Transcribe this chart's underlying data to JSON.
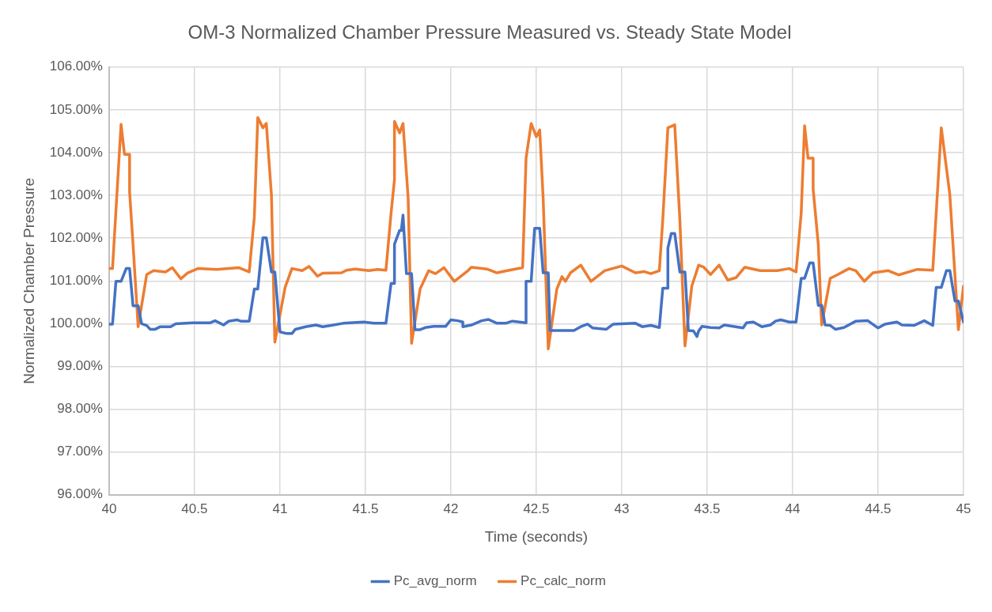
{
  "chart_data": {
    "type": "line",
    "title": "OM-3 Normalized Chamber Pressure Measured vs. Steady State Model",
    "xlabel": "Time (seconds)",
    "ylabel": "Normalized Chamber Pressure",
    "xlim": [
      40,
      45
    ],
    "xticks": [
      40,
      40.5,
      41,
      41.5,
      42,
      42.5,
      43,
      43.5,
      44,
      44.5,
      45
    ],
    "ylim": [
      96,
      106
    ],
    "yticks": [
      {
        "value": 96,
        "label": "96.00%"
      },
      {
        "value": 97,
        "label": "97.00%"
      },
      {
        "value": 98,
        "label": "98.00%"
      },
      {
        "value": 99,
        "label": "99.00%"
      },
      {
        "value": 100,
        "label": "100.00%"
      },
      {
        "value": 101,
        "label": "101.00%"
      },
      {
        "value": 102,
        "label": "102.00%"
      },
      {
        "value": 103,
        "label": "103.00%"
      },
      {
        "value": 104,
        "label": "104.00%"
      },
      {
        "value": 105,
        "label": "105.00%"
      },
      {
        "value": 106,
        "label": "106.00%"
      }
    ],
    "grid": true,
    "legend": "bottom",
    "marker": "none",
    "line_style": "solid",
    "series": [
      {
        "name": "Pc_avg_norm",
        "color": "#4472c4",
        "x": [
          40.0,
          40.02,
          40.04,
          40.07,
          40.1,
          40.12,
          40.14,
          40.17,
          40.19,
          40.22,
          40.24,
          40.27,
          40.3,
          40.36,
          40.39,
          40.49,
          40.59,
          40.62,
          40.67,
          40.7,
          40.75,
          40.77,
          40.82,
          40.85,
          40.87,
          40.9,
          40.92,
          40.95,
          40.97,
          41.0,
          41.04,
          41.07,
          41.09,
          41.15,
          41.21,
          41.25,
          41.3,
          41.37,
          41.49,
          41.55,
          41.62,
          41.65,
          41.67,
          41.67,
          41.7,
          41.71,
          41.72,
          41.74,
          41.77,
          41.79,
          41.82,
          41.85,
          41.9,
          41.97,
          42.0,
          42.04,
          42.07,
          42.07,
          42.12,
          42.18,
          42.22,
          42.27,
          42.32,
          42.36,
          42.44,
          42.44,
          42.47,
          42.49,
          42.52,
          42.54,
          42.57,
          42.58,
          42.64,
          42.72,
          42.76,
          42.8,
          42.83,
          42.91,
          42.95,
          43.08,
          43.12,
          43.17,
          43.22,
          43.24,
          43.27,
          43.27,
          43.29,
          43.31,
          43.34,
          43.37,
          43.39,
          43.42,
          43.44,
          43.45,
          43.47,
          43.52,
          43.57,
          43.6,
          43.71,
          43.73,
          43.77,
          43.82,
          43.87,
          43.9,
          43.93,
          43.98,
          44.02,
          44.05,
          44.07,
          44.1,
          44.12,
          44.15,
          44.17,
          44.19,
          44.22,
          44.25,
          44.3,
          44.37,
          44.44,
          44.5,
          44.54,
          44.61,
          44.64,
          44.71,
          44.77,
          44.82,
          44.84,
          44.87,
          44.9,
          44.92,
          44.95,
          44.97,
          45.0
        ],
        "values": [
          99.99,
          99.99,
          100.99,
          100.99,
          101.29,
          101.29,
          100.42,
          100.42,
          100.0,
          99.96,
          99.87,
          99.87,
          99.93,
          99.93,
          100.0,
          100.02,
          100.02,
          100.07,
          99.97,
          100.06,
          100.09,
          100.06,
          100.06,
          100.81,
          100.81,
          102.01,
          102.01,
          101.21,
          101.21,
          99.81,
          99.77,
          99.77,
          99.87,
          99.93,
          99.97,
          99.93,
          99.96,
          100.01,
          100.04,
          100.01,
          100.01,
          100.94,
          100.94,
          101.86,
          102.18,
          102.18,
          102.54,
          101.17,
          101.17,
          99.86,
          99.86,
          99.91,
          99.94,
          99.94,
          100.09,
          100.07,
          100.04,
          99.93,
          99.97,
          100.07,
          100.1,
          100.01,
          100.01,
          100.06,
          100.02,
          100.99,
          100.99,
          102.23,
          102.23,
          101.19,
          101.19,
          99.84,
          99.84,
          99.84,
          99.93,
          99.99,
          99.9,
          99.87,
          99.99,
          100.01,
          99.93,
          99.96,
          99.91,
          100.83,
          100.83,
          101.77,
          102.11,
          102.11,
          101.21,
          101.21,
          99.84,
          99.83,
          99.7,
          99.83,
          99.94,
          99.91,
          99.9,
          99.97,
          99.9,
          100.02,
          100.04,
          99.93,
          99.97,
          100.06,
          100.09,
          100.04,
          100.04,
          101.06,
          101.06,
          101.42,
          101.42,
          100.43,
          100.43,
          99.97,
          99.96,
          99.87,
          99.91,
          100.06,
          100.07,
          99.9,
          99.99,
          100.04,
          99.97,
          99.96,
          100.07,
          99.96,
          100.85,
          100.85,
          101.24,
          101.24,
          100.53,
          100.53,
          100.04
        ]
      },
      {
        "name": "Pc_calc_norm",
        "color": "#ed7d31",
        "x": [
          40.0,
          40.02,
          40.07,
          40.09,
          40.12,
          40.12,
          40.14,
          40.17,
          40.22,
          40.26,
          40.33,
          40.37,
          40.42,
          40.46,
          40.52,
          40.63,
          40.76,
          40.82,
          40.85,
          40.87,
          40.9,
          40.92,
          40.95,
          40.97,
          41.03,
          41.07,
          41.13,
          41.17,
          41.22,
          41.25,
          41.36,
          41.39,
          41.44,
          41.52,
          41.57,
          41.62,
          41.65,
          41.67,
          41.67,
          41.7,
          41.72,
          41.75,
          41.77,
          41.82,
          41.87,
          41.91,
          41.96,
          42.02,
          42.1,
          42.12,
          42.21,
          42.27,
          42.33,
          42.42,
          42.44,
          42.47,
          42.5,
          42.52,
          42.54,
          42.57,
          42.62,
          42.65,
          42.67,
          42.7,
          42.76,
          42.82,
          42.9,
          43.0,
          43.08,
          43.13,
          43.17,
          43.22,
          43.24,
          43.27,
          43.31,
          43.34,
          43.37,
          43.41,
          43.45,
          43.48,
          43.52,
          43.57,
          43.62,
          43.67,
          43.72,
          43.81,
          43.91,
          43.98,
          44.02,
          44.05,
          44.07,
          44.09,
          44.12,
          44.12,
          44.15,
          44.17,
          44.22,
          44.26,
          44.33,
          44.37,
          44.42,
          44.47,
          44.56,
          44.62,
          44.73,
          44.82,
          44.84,
          44.87,
          44.92,
          44.97,
          45.0
        ],
        "values": [
          101.29,
          101.29,
          104.66,
          103.96,
          103.96,
          103.08,
          101.86,
          99.93,
          101.15,
          101.24,
          101.21,
          101.31,
          101.05,
          101.19,
          101.29,
          101.27,
          101.31,
          101.21,
          102.5,
          104.82,
          104.58,
          104.68,
          103.01,
          99.57,
          100.85,
          101.29,
          101.24,
          101.34,
          101.11,
          101.18,
          101.19,
          101.25,
          101.28,
          101.24,
          101.27,
          101.25,
          102.58,
          103.37,
          104.73,
          104.46,
          104.68,
          102.94,
          99.54,
          100.81,
          101.24,
          101.17,
          101.31,
          100.99,
          101.24,
          101.32,
          101.28,
          101.19,
          101.24,
          101.31,
          103.87,
          104.68,
          104.37,
          104.53,
          102.94,
          99.41,
          100.81,
          101.1,
          100.99,
          101.19,
          101.37,
          100.99,
          101.24,
          101.35,
          101.19,
          101.22,
          101.17,
          101.24,
          102.43,
          104.58,
          104.65,
          102.43,
          99.48,
          100.88,
          101.37,
          101.32,
          101.15,
          101.37,
          101.02,
          101.08,
          101.32,
          101.24,
          101.24,
          101.29,
          101.21,
          102.58,
          104.63,
          103.87,
          103.87,
          103.15,
          101.86,
          99.97,
          101.06,
          101.14,
          101.29,
          101.24,
          100.99,
          101.19,
          101.24,
          101.14,
          101.27,
          101.25,
          102.58,
          104.58,
          103.01,
          99.86,
          100.88
        ]
      }
    ]
  }
}
